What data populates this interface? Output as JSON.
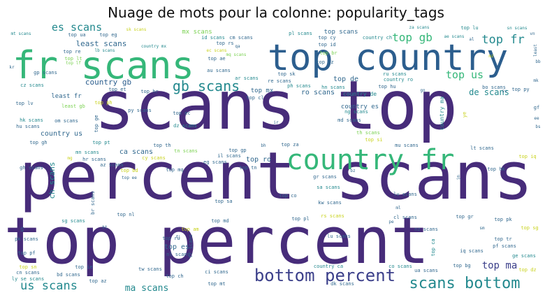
{
  "title": "Nuage de mots pour la colonne: popularity_tags",
  "colors": {
    "dark_purple": "#472c7a",
    "indigo": "#3b3f8a",
    "blue": "#2c5e8e",
    "teal": "#23898e",
    "green": "#35b779",
    "lime": "#7ad151",
    "yellow": "#c8d21c",
    "slate": "#31688e"
  },
  "chart_data": {
    "type": "wordcloud",
    "column": "popularity_tags",
    "words": [
      {
        "text": "scans top",
        "weight": 100,
        "color": "#472c7a"
      },
      {
        "text": "percent scans",
        "weight": 93,
        "color": "#472c7a"
      },
      {
        "text": "top percent",
        "weight": 90,
        "color": "#472c7a"
      },
      {
        "text": "top country",
        "weight": 52,
        "color": "#2c5e8e"
      },
      {
        "text": "fr scans",
        "weight": 50,
        "color": "#35b779"
      },
      {
        "text": "country fr",
        "weight": 38,
        "color": "#35b779"
      },
      {
        "text": "bottom percent",
        "weight": 21,
        "color": "#3b3f8a"
      },
      {
        "text": "scans bottom",
        "weight": 20,
        "color": "#23898e"
      },
      {
        "text": "gb scans",
        "weight": 17,
        "color": "#23898e"
      },
      {
        "text": "us scans",
        "weight": 15,
        "color": "#23898e"
      },
      {
        "text": "top fr",
        "weight": 14,
        "color": "#23898e"
      },
      {
        "text": "top gb",
        "weight": 14,
        "color": "#35b779"
      },
      {
        "text": "es scans",
        "weight": 14,
        "color": "#23898e"
      },
      {
        "text": "top us",
        "weight": 13,
        "color": "#35b779"
      },
      {
        "text": "top ma",
        "weight": 13,
        "color": "#3b3f8a"
      },
      {
        "text": "ma scans",
        "weight": 12,
        "color": "#23898e"
      },
      {
        "text": "least scans",
        "weight": 11,
        "color": "#31688e"
      },
      {
        "text": "country gb",
        "weight": 11,
        "color": "#2c5e8e"
      },
      {
        "text": "de scans",
        "weight": 11,
        "color": "#23898e"
      },
      {
        "text": "top de",
        "weight": 10,
        "color": "#31688e"
      },
      {
        "text": "country us",
        "weight": 10,
        "color": "#31688e"
      },
      {
        "text": "ro scans",
        "weight": 10,
        "color": "#31688e"
      },
      {
        "text": "top scans",
        "weight": 10,
        "color": "#31688e"
      },
      {
        "text": "ca scans",
        "weight": 10,
        "color": "#31688e"
      },
      {
        "text": "top ro",
        "weight": 10,
        "color": "#31688e"
      },
      {
        "text": "top es",
        "weight": 10,
        "color": "#31688e"
      },
      {
        "text": "ch scans",
        "weight": 10,
        "color": "#23898e"
      },
      {
        "text": "country es",
        "weight": 9,
        "color": "#31688e"
      },
      {
        "text": "least fr",
        "weight": 9,
        "color": "#31688e"
      },
      {
        "text": "top mx",
        "weight": 9,
        "color": "#31688e"
      },
      {
        "text": "mx scans",
        "weight": 9,
        "color": "#7ad151"
      },
      {
        "text": "country de",
        "weight": 8,
        "color": "#23898e"
      },
      {
        "text": "cm scans",
        "weight": 8,
        "color": "#31688e"
      },
      {
        "text": "id scans",
        "weight": 8,
        "color": "#23898e"
      },
      {
        "text": "pl scans",
        "weight": 8,
        "color": "#23898e"
      },
      {
        "text": "country ch",
        "weight": 8,
        "color": "#23898e"
      },
      {
        "text": "top lu",
        "weight": 8,
        "color": "#23898e"
      },
      {
        "text": "country ma",
        "weight": 8,
        "color": "#23898e"
      },
      {
        "text": "top ua",
        "weight": 7,
        "color": "#31688e"
      },
      {
        "text": "top eg",
        "weight": 7,
        "color": "#31688e"
      },
      {
        "text": "sk scans",
        "weight": 7,
        "color": "#c8d21c"
      },
      {
        "text": "mt scans",
        "weight": 7,
        "color": "#23898e"
      },
      {
        "text": "za scans",
        "weight": 7,
        "color": "#23898e"
      },
      {
        "text": "ae scans",
        "weight": 7,
        "color": "#23898e"
      },
      {
        "text": "sn scans",
        "weight": 7,
        "color": "#23898e"
      },
      {
        "text": "lb scans",
        "weight": 7,
        "color": "#23898e"
      },
      {
        "text": "country mx",
        "weight": 7,
        "color": "#23898e"
      },
      {
        "text": "top rs",
        "weight": 7,
        "color": "#31688e"
      },
      {
        "text": "top id",
        "weight": 7,
        "color": "#31688e"
      },
      {
        "text": "top re",
        "weight": 7,
        "color": "#31688e"
      },
      {
        "text": "ec scans",
        "weight": 7,
        "color": "#c8d21c"
      },
      {
        "text": "mq scans",
        "weight": 7,
        "color": "#7ad151"
      },
      {
        "text": "top br",
        "weight": 7,
        "color": "#7ad151"
      },
      {
        "text": "top lt",
        "weight": 7,
        "color": "#7ad151"
      },
      {
        "text": "top cz",
        "weight": 7,
        "color": "#31688e"
      },
      {
        "text": "top ae",
        "weight": 7,
        "color": "#31688e"
      },
      {
        "text": "au scans",
        "weight": 7,
        "color": "#31688e"
      },
      {
        "text": "gp scans",
        "weight": 7,
        "color": "#31688e"
      },
      {
        "text": "ar scans",
        "weight": 7,
        "color": "#23898e"
      },
      {
        "text": "re scans",
        "weight": 7,
        "color": "#31688e"
      },
      {
        "text": "ru scans",
        "weight": 7,
        "color": "#23898e"
      },
      {
        "text": "country ro",
        "weight": 7,
        "color": "#23898e"
      },
      {
        "text": "top sk",
        "weight": 7,
        "color": "#31688e"
      },
      {
        "text": "cz scans",
        "weight": 7,
        "color": "#23898e"
      },
      {
        "text": "top et",
        "weight": 7,
        "color": "#31688e"
      },
      {
        "text": "top hr",
        "weight": 7,
        "color": "#31688e"
      },
      {
        "text": "ph scans",
        "weight": 7,
        "color": "#23898e"
      },
      {
        "text": "hn scans",
        "weight": 7,
        "color": "#23898e"
      },
      {
        "text": "top hu",
        "weight": 7,
        "color": "#31688e"
      },
      {
        "text": "bo scans",
        "weight": 7,
        "color": "#31688e"
      },
      {
        "text": "top py",
        "weight": 7,
        "color": "#31688e"
      },
      {
        "text": "top cl",
        "weight": 7,
        "color": "#31688e"
      },
      {
        "text": "top lv",
        "weight": 7,
        "color": "#31688e"
      },
      {
        "text": "least gb",
        "weight": 7,
        "color": "#7ad151"
      },
      {
        "text": "top ph",
        "weight": 7,
        "color": "#c8d21c"
      },
      {
        "text": "py scans",
        "weight": 7,
        "color": "#31688e"
      },
      {
        "text": "ng scans",
        "weight": 7,
        "color": "#23898e"
      },
      {
        "text": "top ec",
        "weight": 7,
        "color": "#31688e"
      },
      {
        "text": "hk scans",
        "weight": 7,
        "color": "#23898e"
      },
      {
        "text": "om scans",
        "weight": 7,
        "color": "#31688e"
      },
      {
        "text": "hu scans",
        "weight": 7,
        "color": "#31688e"
      },
      {
        "text": "dz scans",
        "weight": 7,
        "color": "#23898e"
      },
      {
        "text": "md scans",
        "weight": 7,
        "color": "#31688e"
      },
      {
        "text": "top ge",
        "weight": 7,
        "color": "#31688e"
      },
      {
        "text": "th scans",
        "weight": 7,
        "color": "#7ad151"
      },
      {
        "text": "top gh",
        "weight": 7,
        "color": "#31688e"
      },
      {
        "text": "top pt",
        "weight": 7,
        "color": "#23898e"
      },
      {
        "text": "top za",
        "weight": 7,
        "color": "#31688e"
      },
      {
        "text": "top si",
        "weight": 7,
        "color": "#c8d21c"
      },
      {
        "text": "mu scans",
        "weight": 7,
        "color": "#31688e"
      },
      {
        "text": "top th",
        "weight": 7,
        "color": "#31688e"
      },
      {
        "text": "tn scans",
        "weight": 7,
        "color": "#7ad151"
      },
      {
        "text": "top gp",
        "weight": 7,
        "color": "#31688e"
      },
      {
        "text": "lt scans",
        "weight": 7,
        "color": "#31688e"
      },
      {
        "text": "mn scans",
        "weight": 7,
        "color": "#23898e"
      },
      {
        "text": "hr scans",
        "weight": 7,
        "color": "#31688e"
      },
      {
        "text": "cy scans",
        "weight": 7,
        "color": "#c8d21c"
      },
      {
        "text": "il scans",
        "weight": 7,
        "color": "#31688e"
      },
      {
        "text": "eg scans",
        "weight": 7,
        "color": "#31688e"
      },
      {
        "text": "gh scans",
        "weight": 7,
        "color": "#31688e"
      },
      {
        "text": "az scans",
        "weight": 7,
        "color": "#31688e"
      },
      {
        "text": "top bd",
        "weight": 7,
        "color": "#c8d21c"
      },
      {
        "text": "top mq",
        "weight": 7,
        "color": "#31688e"
      },
      {
        "text": "top tn",
        "weight": 7,
        "color": "#31688e"
      },
      {
        "text": "gr scans",
        "weight": 7,
        "color": "#31688e"
      },
      {
        "text": "top hk",
        "weight": 7,
        "color": "#31688e"
      },
      {
        "text": "top iq",
        "weight": 7,
        "color": "#c8d21c"
      },
      {
        "text": "sa scans",
        "weight": 7,
        "color": "#23898e"
      },
      {
        "text": "top co",
        "weight": 7,
        "color": "#31688e"
      },
      {
        "text": "kw scans",
        "weight": 7,
        "color": "#31688e"
      },
      {
        "text": "lv scans",
        "weight": 7,
        "color": "#31688e"
      },
      {
        "text": "br scans",
        "weight": 7,
        "color": "#31688e"
      },
      {
        "text": "top sa",
        "weight": 7,
        "color": "#31688e"
      },
      {
        "text": "top nl",
        "weight": 7,
        "color": "#31688e"
      },
      {
        "text": "top md",
        "weight": 7,
        "color": "#31688e"
      },
      {
        "text": "sg scans",
        "weight": 7,
        "color": "#23898e"
      },
      {
        "text": "rs scans",
        "weight": 7,
        "color": "#c8d21c"
      },
      {
        "text": "top pl",
        "weight": 7,
        "color": "#31688e"
      },
      {
        "text": "cl scans",
        "weight": 7,
        "color": "#31688e"
      },
      {
        "text": "top gr",
        "weight": 7,
        "color": "#31688e"
      },
      {
        "text": "top pk",
        "weight": 7,
        "color": "#31688e"
      },
      {
        "text": "nz scans",
        "weight": 7,
        "color": "#31688e"
      },
      {
        "text": "top sg",
        "weight": 7,
        "color": "#c8d21c"
      },
      {
        "text": "pk scans",
        "weight": 7,
        "color": "#31688e"
      },
      {
        "text": "top am",
        "weight": 7,
        "color": "#c8d21c"
      },
      {
        "text": "top ru",
        "weight": 7,
        "color": "#31688e"
      },
      {
        "text": "lu scans",
        "weight": 7,
        "color": "#31688e"
      },
      {
        "text": "top ca",
        "weight": 7,
        "color": "#23898e"
      },
      {
        "text": "top tr",
        "weight": 7,
        "color": "#31688e"
      },
      {
        "text": "pf scans",
        "weight": 7,
        "color": "#31688e"
      },
      {
        "text": "iq scans",
        "weight": 7,
        "color": "#31688e"
      },
      {
        "text": "top pf",
        "weight": 7,
        "color": "#31688e"
      },
      {
        "text": "nl scans",
        "weight": 7,
        "color": "#31688e"
      },
      {
        "text": "tr scans",
        "weight": 7,
        "color": "#31688e"
      },
      {
        "text": "top sn",
        "weight": 7,
        "color": "#c8d21c"
      },
      {
        "text": "top ie",
        "weight": 7,
        "color": "#31688e"
      },
      {
        "text": "tw scans",
        "weight": 7,
        "color": "#31688e"
      },
      {
        "text": "ci scans",
        "weight": 7,
        "color": "#31688e"
      },
      {
        "text": "country ca",
        "weight": 7,
        "color": "#23898e"
      },
      {
        "text": "co scans",
        "weight": 7,
        "color": "#23898e"
      },
      {
        "text": "ua scans",
        "weight": 7,
        "color": "#31688e"
      },
      {
        "text": "top bg",
        "weight": 7,
        "color": "#31688e"
      },
      {
        "text": "ge scans",
        "weight": 7,
        "color": "#23898e"
      },
      {
        "text": "top dz",
        "weight": 7,
        "color": "#c8d21c"
      },
      {
        "text": "cn scans",
        "weight": 7,
        "color": "#31688e"
      },
      {
        "text": "bd scans",
        "weight": 7,
        "color": "#31688e"
      },
      {
        "text": "ly se scans",
        "weight": 7,
        "color": "#23898e"
      },
      {
        "text": "top az",
        "weight": 7,
        "color": "#31688e"
      },
      {
        "text": "top ch",
        "weight": 7,
        "color": "#31688e"
      },
      {
        "text": "top mt",
        "weight": 7,
        "color": "#31688e"
      },
      {
        "text": "dk scans",
        "weight": 7,
        "color": "#31688e"
      },
      {
        "text": "top lf",
        "weight": 7,
        "color": "#7ad151"
      },
      {
        "text": "top cy",
        "weight": 7,
        "color": "#31688e"
      },
      {
        "text": "top ee",
        "weight": 7,
        "color": "#31688e"
      },
      {
        "text": "ye",
        "weight": 6,
        "color": "#c8d21c"
      },
      {
        "text": "gf",
        "weight": 6,
        "color": "#31688e"
      },
      {
        "text": "bs",
        "weight": 6,
        "color": "#31688e"
      },
      {
        "text": "ee",
        "weight": 6,
        "color": "#31688e"
      },
      {
        "text": "bh",
        "weight": 6,
        "color": "#31688e"
      },
      {
        "text": "ir",
        "weight": 6,
        "color": "#31688e"
      },
      {
        "text": "bz",
        "weight": 6,
        "color": "#31688e"
      },
      {
        "text": "ml",
        "weight": 6,
        "color": "#31688e"
      },
      {
        "text": "bt",
        "weight": 6,
        "color": "#31688e"
      },
      {
        "text": "fi",
        "weight": 6,
        "color": "#31688e"
      },
      {
        "text": "sm",
        "weight": 6,
        "color": "#31688e"
      },
      {
        "text": "kh",
        "weight": 6,
        "color": "#31688e"
      },
      {
        "text": "vn",
        "weight": 6,
        "color": "#31688e"
      },
      {
        "text": "al",
        "weight": 6,
        "color": "#31688e"
      },
      {
        "text": "qa",
        "weight": 6,
        "color": "#31688e"
      },
      {
        "text": "kr",
        "weight": 6,
        "color": "#31688e"
      },
      {
        "text": "gn",
        "weight": 6,
        "color": "#31688e"
      },
      {
        "text": "pe",
        "weight": 6,
        "color": "#31688e"
      },
      {
        "text": "mk",
        "weight": 6,
        "color": "#31688e"
      },
      {
        "text": "mz",
        "weight": 6,
        "color": "#c8d21c"
      },
      {
        "text": "bb",
        "weight": 6,
        "color": "#31688e"
      },
      {
        "text": "least",
        "weight": 6,
        "color": "#31688e"
      },
      {
        "text": "sv",
        "weight": 6,
        "color": "#31688e"
      },
      {
        "text": "mg",
        "weight": 6,
        "color": "#c8d21c"
      },
      {
        "text": "jm",
        "weight": 6,
        "color": "#31688e"
      }
    ]
  }
}
